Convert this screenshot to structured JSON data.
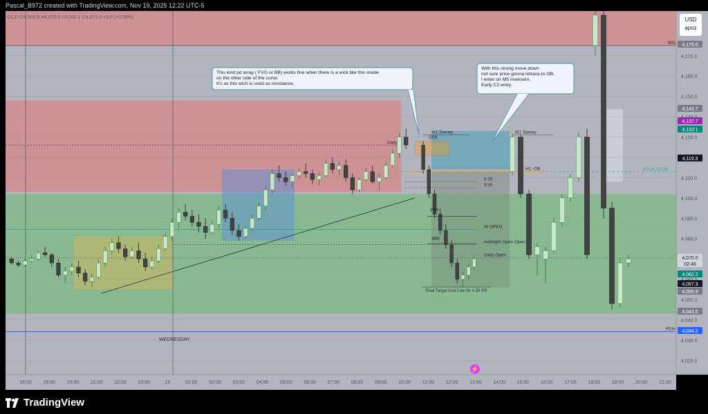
{
  "header": {
    "caption": "Pascal_B972 created with TradingView.com, Nov 19, 2025 12:22 UTC-5",
    "symbol": "GC1! · 5 · COMEX",
    "ohlc": "O4,066.9  H4,070.9  L4,066.1  C4,070.0  +3.6 (+0.09%)"
  },
  "currency_box": {
    "line1": "USD",
    "line2": "apoz"
  },
  "logo": {
    "text": "TradingView",
    "icon": "tradingview-logo-icon"
  },
  "colors": {
    "pink_zone": "#e57373",
    "green_zone": "#66bb6a",
    "blue_zone": "#5c8fd6",
    "yellow_zone": "#c8b560",
    "teal_zone": "#4fa3b8",
    "bull_candle": "#c8e6c9",
    "bear_candle": "#424242",
    "pdh_line": "#2962ff",
    "sweep_orange": "#ff9800"
  },
  "chart_data": {
    "type": "candlestick",
    "symbol": "GC1!",
    "timeframe": "5",
    "ylim": [
      4013,
      4192
    ],
    "x_ticks": [
      "18:00",
      "19:00",
      "20:00",
      "21:00",
      "22:00",
      "23:00",
      "19",
      "01:00",
      "02:00",
      "03:00",
      "04:00",
      "05:00",
      "06:00",
      "07:00",
      "08:00",
      "09:00",
      "10:00",
      "11:00",
      "12:00",
      "13:00",
      "14:00",
      "15:00",
      "16:00",
      "17:00",
      "18:00",
      "19:00",
      "20:00",
      "21:00"
    ],
    "y_ticks": [
      4020.0,
      4030.0,
      4040.0,
      4050.0,
      4060.0,
      4070.0,
      4080.0,
      4090.0,
      4100.0,
      4110.0,
      4120.0,
      4130.0,
      4140.0,
      4150.0,
      4160.0,
      4170.0
    ],
    "price_badges": [
      {
        "value": "4,175.0",
        "color": "#787b86"
      },
      {
        "value": "4,143.7",
        "color": "#787b86"
      },
      {
        "value": "4,137.7",
        "color": "#9c27b0"
      },
      {
        "value": "4,133.1",
        "color": "#00897b"
      },
      {
        "value": "4,119.3",
        "color": "#131722"
      },
      {
        "value": "4,070.0",
        "color": "#d1d4dc"
      },
      {
        "value": "02:48",
        "color": "#d1d4dc"
      },
      {
        "value": "4,062.2",
        "color": "#00897b"
      },
      {
        "value": "4,057.3",
        "color": "#131722"
      },
      {
        "value": "4,055.9",
        "color": "#787b86"
      },
      {
        "value": "4,043.5",
        "color": "#787b86"
      },
      {
        "value": "4,034.2",
        "color": "#2962ff"
      }
    ],
    "horizontal_levels": [
      {
        "label": "BSL",
        "price": 4175
      },
      {
        "label": "Daily",
        "price": 4126
      },
      {
        "label": "0.5 (4,112.9)",
        "price": 4112.9
      },
      {
        "label": "H1 -OB",
        "price": 4113
      },
      {
        "label": "8:30",
        "price": 4108
      },
      {
        "label": "9:30",
        "price": 4105
      },
      {
        "label": "W OPEN",
        "price": 4084.5
      },
      {
        "label": "midnight Open Open",
        "price": 4077
      },
      {
        "label": "Daily Open",
        "price": 4070.5
      },
      {
        "label": "PDH",
        "price": 4034.2
      },
      {
        "label": "H1 Sweep",
        "price": 4131
      },
      {
        "label": "M1 Sweep",
        "price": 4131
      }
    ],
    "annotations": [
      {
        "text": "This kind pd array ( FVG or BB) works fine when there is a wick like this inside on the other side of the curve. It's as this wich is used as resistance."
      },
      {
        "text": "With this strong move down not sure price gonna retrace to OB. I enter on M5 inversion. Early C2 entry."
      },
      {
        "text": "Final Target Asia Low for 4.59 RR"
      },
      {
        "text": "2RR"
      },
      {
        "text": "3RR"
      },
      {
        "text": "WEDNESDAY"
      },
      {
        "text": "OSS"
      }
    ],
    "zones": [
      {
        "name": "premium",
        "from_price": 4103,
        "to_price": 4148,
        "color": "pink"
      },
      {
        "name": "discount",
        "from_price": 4043,
        "to_price": 4102,
        "color": "green"
      },
      {
        "name": "top",
        "from_price": 4175,
        "to_price": 4192,
        "color": "pink"
      }
    ],
    "series": [
      {
        "name": "pre-session",
        "values": [
          [
            4070,
            4071,
            4067,
            4068
          ],
          [
            4068,
            4069,
            4066,
            4067
          ],
          [
            4067,
            4070,
            4066,
            4069
          ],
          [
            4069,
            4072,
            4068,
            4070
          ],
          [
            4070,
            4074,
            4069,
            4073
          ],
          [
            4073,
            4076,
            4071,
            4072
          ],
          [
            4072,
            4073,
            4066,
            4068
          ],
          [
            4068,
            4070,
            4061,
            4062
          ],
          [
            4062,
            4066,
            4058,
            4064
          ],
          [
            4064,
            4068,
            4062,
            4066
          ],
          [
            4066,
            4069,
            4061,
            4063
          ],
          [
            4063,
            4065,
            4057,
            4059
          ],
          [
            4059,
            4063,
            4056,
            4061
          ],
          [
            4061,
            4070,
            4060,
            4068
          ],
          [
            4068,
            4076,
            4066,
            4074
          ],
          [
            4074,
            4080,
            4072,
            4078
          ],
          [
            4078,
            4081,
            4073,
            4075
          ],
          [
            4075,
            4077,
            4069,
            4071
          ],
          [
            4071,
            4076,
            4070,
            4074
          ],
          [
            4074,
            4078,
            4068,
            4070
          ],
          [
            4070,
            4073,
            4064,
            4066
          ],
          [
            4066,
            4071,
            4065,
            4069
          ],
          [
            4069,
            4077,
            4068,
            4075
          ],
          [
            4075,
            4083,
            4074,
            4081
          ],
          [
            4081,
            4090,
            4079,
            4088
          ],
          [
            4088,
            4095,
            4085,
            4093
          ],
          [
            4093,
            4097,
            4089,
            4091
          ],
          [
            4091,
            4094,
            4086,
            4088
          ],
          [
            4088,
            4092,
            4083,
            4086
          ],
          [
            4086,
            4090,
            4080,
            4083
          ],
          [
            4083,
            4089,
            4082,
            4087
          ],
          [
            4087,
            4096,
            4085,
            4094
          ],
          [
            4094,
            4097,
            4088,
            4090
          ],
          [
            4090,
            4093,
            4082,
            4084
          ],
          [
            4084,
            4087,
            4079,
            4081
          ],
          [
            4081,
            4086,
            4080,
            4085
          ],
          [
            4085,
            4092,
            4084,
            4090
          ],
          [
            4090,
            4098,
            4089,
            4096
          ],
          [
            4096,
            4106,
            4094,
            4104
          ],
          [
            4104,
            4114,
            4102,
            4112
          ],
          [
            4112,
            4116,
            4108,
            4110
          ],
          [
            4110,
            4113,
            4106,
            4108
          ],
          [
            4108,
            4112,
            4105,
            4111
          ],
          [
            4111,
            4115,
            4109,
            4113
          ],
          [
            4113,
            4117,
            4110,
            4112
          ],
          [
            4112,
            4114,
            4107,
            4109
          ],
          [
            4109,
            4113,
            4106,
            4111
          ],
          [
            4111,
            4119,
            4110,
            4117
          ],
          [
            4117,
            4120,
            4112,
            4114
          ],
          [
            4114,
            4118,
            4111,
            4116
          ],
          [
            4116,
            4119,
            4108,
            4110
          ],
          [
            4110,
            4112,
            4102,
            4104
          ],
          [
            4104,
            4110,
            4103,
            4109
          ],
          [
            4109,
            4115,
            4108,
            4113
          ],
          [
            4113,
            4116,
            4107,
            4108
          ],
          [
            4108,
            4112,
            4104,
            4110
          ],
          [
            4110,
            4118,
            4109,
            4116
          ],
          [
            4116,
            4124,
            4115,
            4122
          ],
          [
            4122,
            4132,
            4120,
            4130
          ],
          [
            4130,
            4134,
            4124,
            4126
          ]
        ]
      },
      {
        "name": "ny-session",
        "values": [
          [
            4126,
            4128,
            4112,
            4114
          ],
          [
            4114,
            4116,
            4100,
            4102
          ],
          [
            4102,
            4104,
            4090,
            4092
          ],
          [
            4092,
            4095,
            4082,
            4084
          ],
          [
            4084,
            4087,
            4075,
            4077
          ],
          [
            4077,
            4079,
            4066,
            4068
          ],
          [
            4068,
            4070,
            4058,
            4060
          ],
          [
            4060,
            4064,
            4056,
            4062
          ],
          [
            4062,
            4068,
            4060,
            4066
          ],
          [
            4066,
            4072,
            4065,
            4070
          ]
        ]
      },
      {
        "name": "afternoon",
        "values": [
          [
            4113,
            4132,
            4111,
            4130
          ],
          [
            4130,
            4131,
            4100,
            4102
          ],
          [
            4102,
            4104,
            4070,
            4072
          ],
          [
            4072,
            4078,
            4062,
            4076
          ],
          [
            4070,
            4076,
            4058,
            4074
          ],
          [
            4074,
            4090,
            4073,
            4088
          ],
          [
            4088,
            4102,
            4086,
            4100
          ],
          [
            4100,
            4112,
            4098,
            4110
          ],
          [
            4110,
            4132,
            4108,
            4130
          ],
          [
            4130,
            4134,
            4070,
            4072
          ],
          [
            4175,
            4192,
            4170,
            4190
          ],
          [
            4190,
            4192,
            4090,
            4095
          ],
          [
            4095,
            4098,
            4045,
            4048
          ],
          [
            4048,
            4070,
            4046,
            4068
          ],
          [
            4068,
            4072,
            4066,
            4070
          ]
        ]
      }
    ]
  }
}
